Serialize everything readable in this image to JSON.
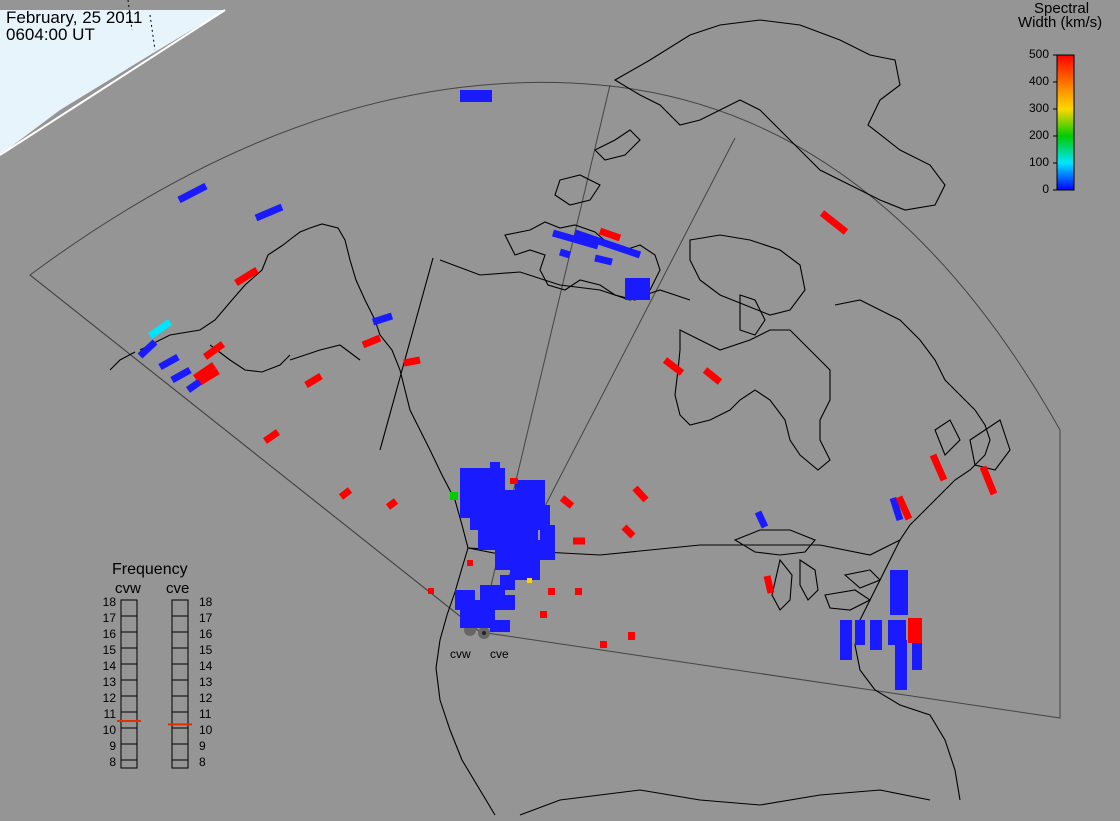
{
  "header": {
    "date": "February, 25 2011",
    "time": "0604:00 UT"
  },
  "colorbar": {
    "title_line1": "Spectral",
    "title_line2": "Width (km/s)",
    "ticks": [
      "500",
      "400",
      "300",
      "200",
      "100",
      "0"
    ],
    "colors": [
      "#ff0000",
      "#ff8c00",
      "#ffd700",
      "#00cc00",
      "#00e5ff",
      "#0000ff"
    ]
  },
  "frequency": {
    "title": "Frequency",
    "left_radar": "cvw",
    "right_radar": "cve",
    "scale": [
      "18",
      "17",
      "16",
      "15",
      "14",
      "13",
      "12",
      "11",
      "10",
      "9",
      "8"
    ],
    "cvw_value": 10.8,
    "cve_value": 10.6,
    "marker_color": "#e03000"
  },
  "radars": {
    "west": "cvw",
    "east": "cve"
  },
  "colors": {
    "background": "#959595",
    "daylight": "#e8f4fb",
    "scatter_blue": "#1a1aff",
    "scatter_red": "#ff0000"
  }
}
